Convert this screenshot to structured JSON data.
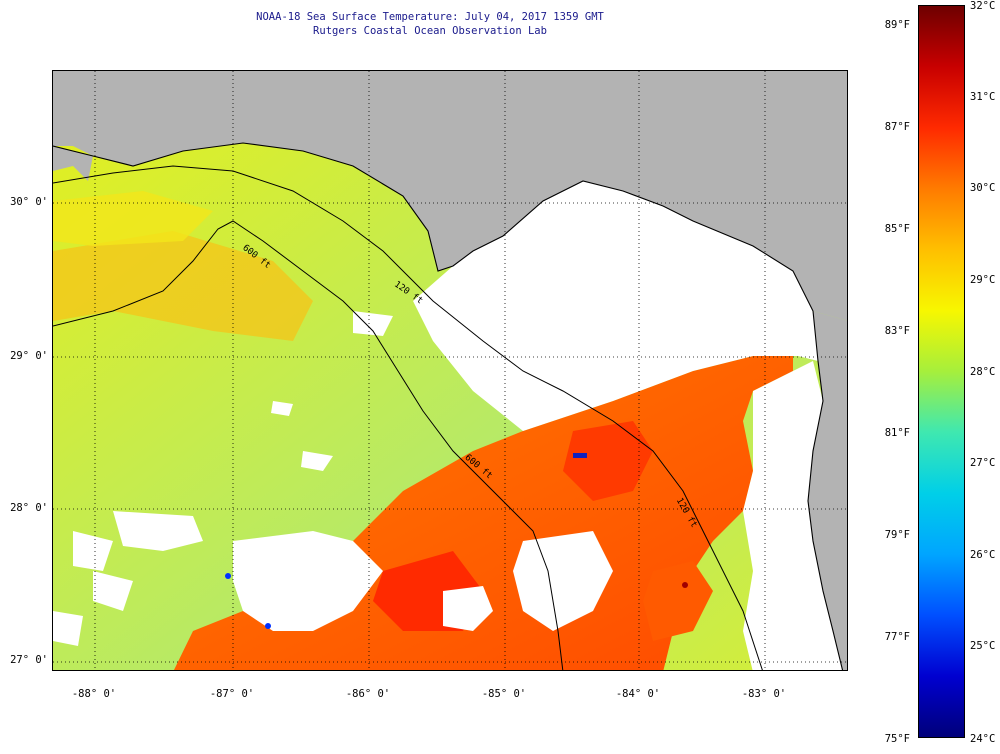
{
  "header": {
    "title": "NOAA-18 Sea Surface Temperature:  July 04, 2017 1359 GMT",
    "subtitle": "Rutgers Coastal Ocean Observation Lab"
  },
  "map": {
    "lat_labels": [
      "30° 0'",
      "29° 0'",
      "28° 0'",
      "27° 0'"
    ],
    "lon_labels": [
      "-88° 0'",
      "-87° 0'",
      "-86° 0'",
      "-85° 0'",
      "-84° 0'",
      "-83° 0'"
    ],
    "contour_labels": [
      "600 ft",
      "120 ft",
      "600 ft",
      "120 ft"
    ],
    "colors": {
      "land": "#b3b3b3",
      "cloud": "#ffffff",
      "contour": "#000000",
      "grid": "#000000"
    }
  },
  "colorbar": {
    "celsius": [
      "32°C",
      "31°C",
      "30°C",
      "29°C",
      "28°C",
      "27°C",
      "26°C",
      "25°C",
      "24°C"
    ],
    "fahrenheit": [
      "89°F",
      "87°F",
      "85°F",
      "83°F",
      "81°F",
      "79°F",
      "77°F",
      "75°F"
    ],
    "stops": [
      "#6e0000",
      "#c80000",
      "#ff2a00",
      "#ff7b00",
      "#ffbf00",
      "#f7f700",
      "#a6ef3c",
      "#3fe8b0",
      "#00cfe8",
      "#00a5ff",
      "#0050ff",
      "#0000d0",
      "#00007a"
    ]
  }
}
